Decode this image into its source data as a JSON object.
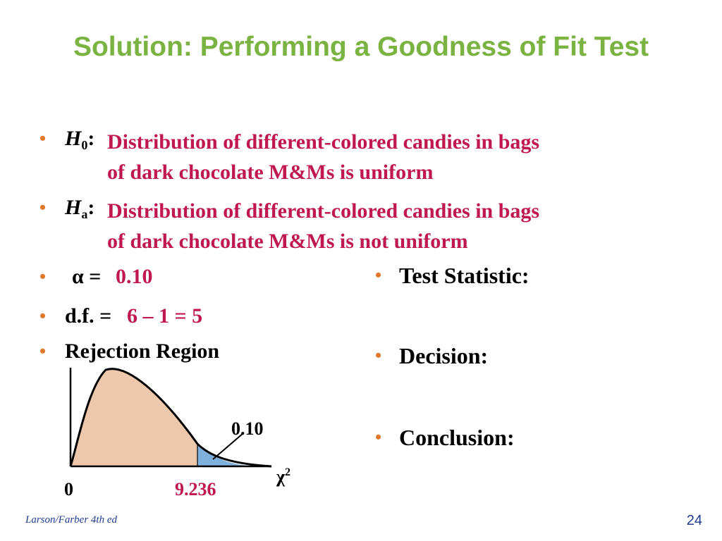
{
  "title": "Solution: Performing a Goodness of Fit Test",
  "hypotheses": {
    "h0": {
      "letter": "H",
      "subscript": "0",
      "colon": ":",
      "line1": "Distribution of different-colored candies in bags",
      "line2": "of dark chocolate M&Ms is uniform"
    },
    "ha": {
      "letter": "H",
      "subscript": "a",
      "colon": ":",
      "line1": "Distribution of different-colored candies in bags",
      "line2": "of dark chocolate M&Ms is not uniform"
    }
  },
  "alpha": {
    "label": "α =",
    "value": "0.10"
  },
  "df": {
    "label": "d.f. =",
    "value": "6 – 1 = 5"
  },
  "rejection_region": {
    "label": "Rejection Region"
  },
  "right_column": {
    "test_statistic": "Test Statistic:",
    "decision": "Decision:",
    "conclusion": "Conclusion:"
  },
  "chart_data": {
    "type": "area",
    "area_label": "0.10",
    "x_axis_symbol": "χ",
    "x_axis_superscript": "2",
    "origin_label": "0",
    "critical_value": "9.236",
    "colors": {
      "main_area": "#edc8ad",
      "rejection_area": "#7fb1dc",
      "critical_value_text": "#c0174e"
    }
  },
  "footer": {
    "source": "Larson/Farber 4th ed",
    "page_number": "24"
  },
  "colors": {
    "title": "#7bb342",
    "bullet": "#e0792c",
    "accent_text": "#c0174e",
    "footer": "#1f3a93"
  }
}
